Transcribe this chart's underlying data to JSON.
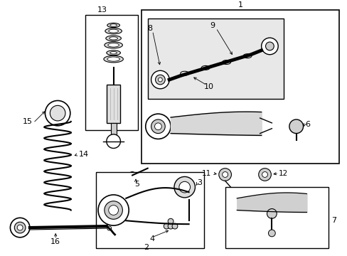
{
  "background_color": "#ffffff",
  "line_color": "#000000",
  "box_fill": "#e8e8e8",
  "white": "#ffffff",
  "fig_width": 4.89,
  "fig_height": 3.6,
  "dpi": 100
}
